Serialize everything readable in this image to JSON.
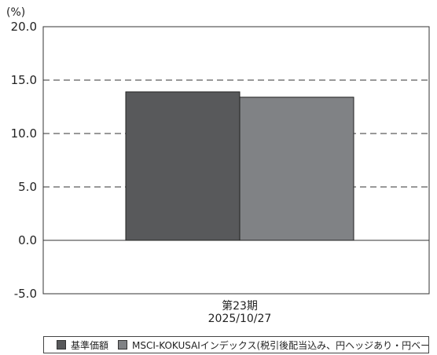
{
  "chart_data": {
    "type": "bar",
    "unit_label": "(%)",
    "categories": [
      "第23期\n2025/10/27"
    ],
    "category_lines": [
      [
        "第23期",
        "2025/10/27"
      ]
    ],
    "series": [
      {
        "name": "基準価額",
        "values": [
          13.9
        ],
        "color": "#58595b"
      },
      {
        "name": "MSCI-KOKUSAIインデックス(税引後配当込み、円ヘッジあり・円ベース)",
        "values": [
          13.4
        ],
        "color": "#808285"
      }
    ],
    "ylim": [
      -5.0,
      20.0
    ],
    "yticks": [
      "20.0",
      "15.0",
      "10.0",
      "5.0",
      "0.0",
      "-5.0"
    ],
    "ytick_values": [
      20,
      15,
      10,
      5,
      0,
      -5
    ],
    "grid": "dashed",
    "legend_position": "bottom"
  }
}
